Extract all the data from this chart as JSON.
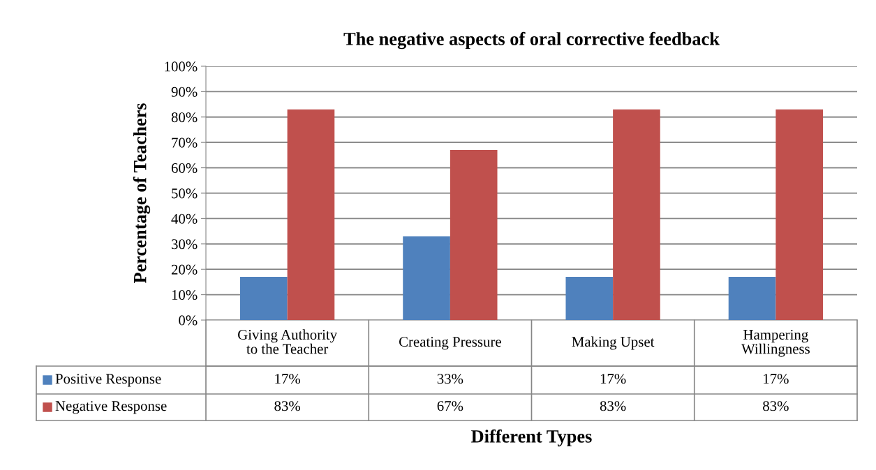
{
  "chart_data": {
    "type": "bar",
    "title": "The negative aspects of oral corrective feedback",
    "xlabel": "Different Types",
    "ylabel": "Percentage of Teachers",
    "categories": [
      "Giving Authority\nto the Teacher",
      "Creating Pressure",
      "Making Upset",
      "Hampering\nWillingness"
    ],
    "series": [
      {
        "name": "Positive Response",
        "color": "#4f81bd",
        "values": [
          17,
          33,
          17,
          17
        ],
        "value_labels": [
          "17%",
          "33%",
          "17%",
          "17%"
        ]
      },
      {
        "name": "Negative Response",
        "color": "#c0504d",
        "values": [
          83,
          67,
          83,
          83
        ],
        "value_labels": [
          "83%",
          "67%",
          "83%",
          "83%"
        ]
      }
    ],
    "ylim": [
      0,
      100
    ],
    "yticks": [
      {
        "value": 0,
        "label": "0%"
      },
      {
        "value": 10,
        "label": "10%"
      },
      {
        "value": 20,
        "label": "20%"
      },
      {
        "value": 30,
        "label": "30%"
      },
      {
        "value": 40,
        "label": "40%"
      },
      {
        "value": 50,
        "label": "50%"
      },
      {
        "value": 60,
        "label": "60%"
      },
      {
        "value": 70,
        "label": "70%"
      },
      {
        "value": 80,
        "label": "80%"
      },
      {
        "value": 90,
        "label": "90%"
      },
      {
        "value": 100,
        "label": "100%"
      }
    ],
    "grid": "y",
    "legend": "bottom left"
  }
}
